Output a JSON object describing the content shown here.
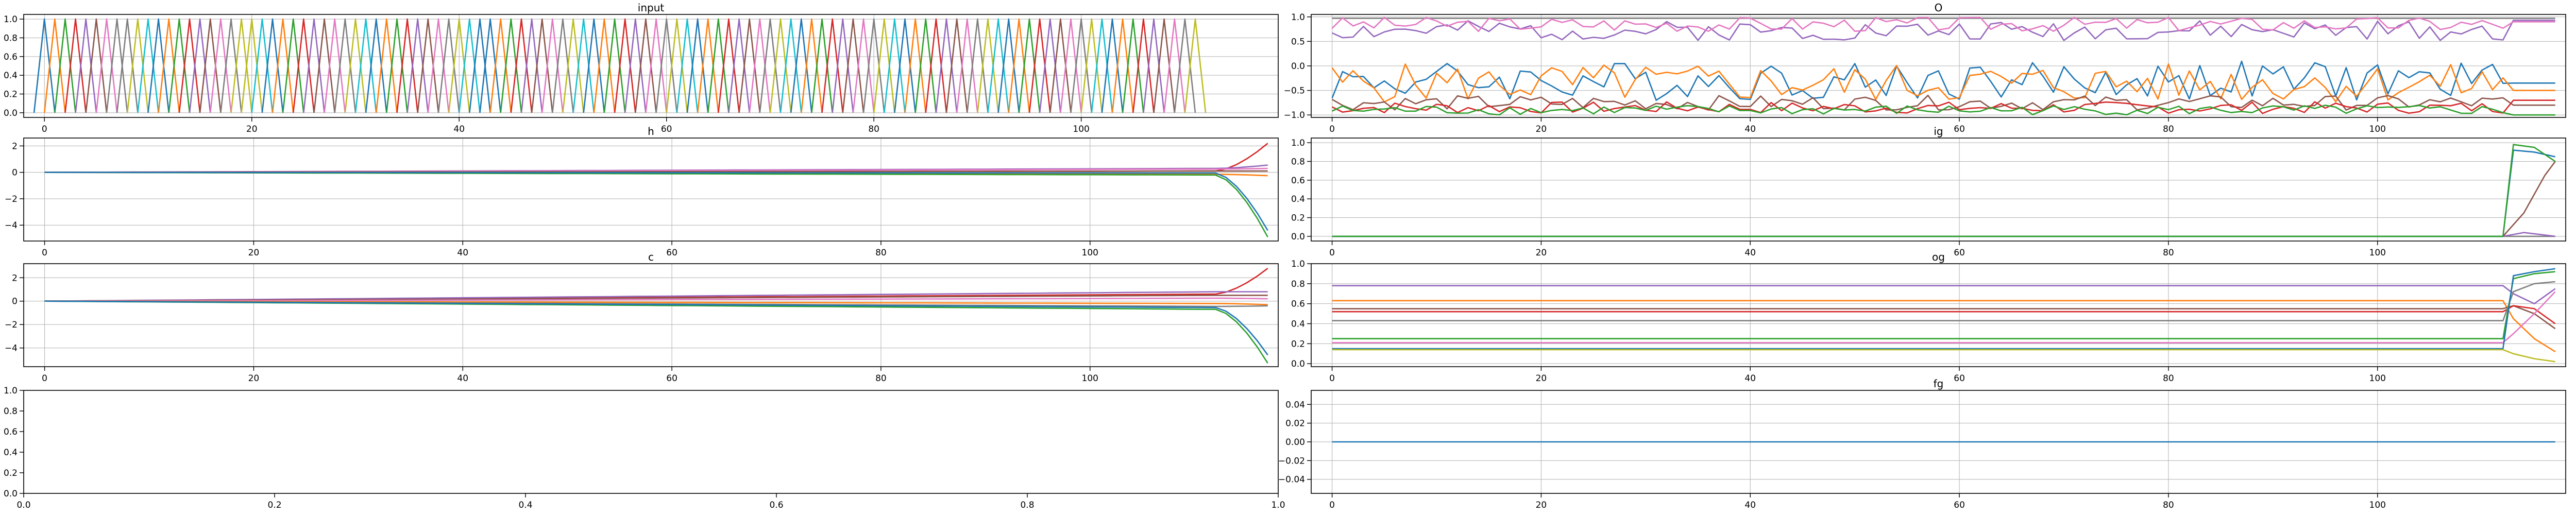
{
  "figure": {
    "background": "#ffffff"
  },
  "chart_data": [
    {
      "type": "line",
      "title": "input",
      "xlim": [
        -2,
        119
      ],
      "ylim": [
        -0.05,
        1.05
      ],
      "xticks": [
        0,
        20,
        40,
        60,
        80,
        100
      ],
      "yticks": [
        0.0,
        0.2,
        0.4,
        0.6,
        0.8,
        1.0
      ],
      "ytick_labels": [
        "0.0",
        "0.2",
        "0.4",
        "0.6",
        "0.8",
        "1.0"
      ],
      "grid": true,
      "n_steps": 112,
      "pattern": "one_hot_triangles",
      "one_hot_sequence": [
        0,
        1,
        2,
        3,
        4,
        5,
        6,
        7,
        7,
        8,
        9,
        0,
        1,
        2,
        3,
        4,
        5,
        6,
        7,
        8,
        8,
        9,
        0,
        1,
        2,
        3,
        4,
        5,
        6,
        7,
        8,
        9,
        0,
        1,
        2,
        3,
        4,
        5,
        6,
        7,
        8,
        9,
        0,
        0,
        1,
        2,
        3,
        4,
        5,
        6,
        7,
        8,
        9,
        0,
        1,
        2,
        3,
        4,
        5,
        6,
        7,
        8,
        9,
        0,
        1,
        2,
        3,
        4,
        5,
        6,
        7,
        8,
        9,
        0,
        1,
        2,
        3,
        4,
        5,
        6,
        7,
        8,
        9,
        0,
        1,
        2,
        3,
        4,
        5,
        6,
        7,
        8,
        9,
        0,
        1,
        2,
        3,
        4,
        5,
        6,
        7,
        8,
        9,
        0,
        1,
        2,
        3,
        4,
        5,
        6,
        7,
        8
      ],
      "series_colors": [
        "#1f77b4",
        "#ff7f0e",
        "#2ca02c",
        "#d62728",
        "#9467bd",
        "#8c564b",
        "#e377c2",
        "#7f7f7f",
        "#bcbd22",
        "#17becf"
      ]
    },
    {
      "type": "line",
      "title": "O",
      "xlim": [
        -2,
        118
      ],
      "ylim": [
        -1.05,
        1.05
      ],
      "xticks": [
        0,
        20,
        40,
        60,
        80,
        100
      ],
      "yticks": [
        -1.0,
        -0.5,
        0.0,
        0.5,
        1.0
      ],
      "ytick_labels": [
        "−1.0",
        "−0.5",
        "0.0",
        "0.5",
        "1.0"
      ],
      "grid": true,
      "n_steps": 112,
      "transition_at": 112,
      "series": [
        {
          "color": "#7f7f7f",
          "base": 0.97,
          "amp": 0.0,
          "end": 0.97,
          "seed": 11
        },
        {
          "color": "#9467bd",
          "base": 0.72,
          "amp": 0.2,
          "end": 0.93,
          "seed": 2
        },
        {
          "color": "#e377c2",
          "base": 0.85,
          "amp": 0.15,
          "end": 0.9,
          "seed": 3
        },
        {
          "color": "#1f77b4",
          "base": -0.3,
          "amp": 0.4,
          "end": -0.35,
          "seed": 4
        },
        {
          "color": "#ff7f0e",
          "base": -0.35,
          "amp": 0.4,
          "end": -0.5,
          "seed": 5
        },
        {
          "color": "#8c564b",
          "base": -0.75,
          "amp": 0.15,
          "end": -0.8,
          "seed": 6
        },
        {
          "color": "#d62728",
          "base": -0.85,
          "amp": 0.12,
          "end": -0.7,
          "seed": 7
        },
        {
          "color": "#2ca02c",
          "base": -0.9,
          "amp": 0.1,
          "end": -1.0,
          "seed": 8
        }
      ]
    },
    {
      "type": "line",
      "title": "h",
      "xlim": [
        -2,
        118
      ],
      "ylim": [
        -5.2,
        2.6
      ],
      "xticks": [
        0,
        20,
        40,
        60,
        80,
        100
      ],
      "yticks": [
        -4,
        -2,
        0,
        2
      ],
      "ytick_labels": [
        "−4",
        "−2",
        "0",
        "2"
      ],
      "grid": true,
      "n_steps": 112,
      "transition_at": 112,
      "series": [
        {
          "color": "#d62728",
          "drift": 0.1,
          "end": 2.2
        },
        {
          "color": "#9467bd",
          "drift": 0.3,
          "end": 0.55
        },
        {
          "color": "#e377c2",
          "drift": 0.25,
          "end": 0.3
        },
        {
          "color": "#8c564b",
          "drift": 0.1,
          "end": 0.1
        },
        {
          "color": "#ff7f0e",
          "drift": -0.15,
          "end": -0.25
        },
        {
          "color": "#2ca02c",
          "drift": -0.2,
          "end": -4.9
        },
        {
          "color": "#1f77b4",
          "drift": -0.05,
          "end": -4.4
        }
      ]
    },
    {
      "type": "line",
      "title": "ig",
      "xlim": [
        -2,
        118
      ],
      "ylim": [
        -0.05,
        1.05
      ],
      "xticks": [
        0,
        20,
        40,
        60,
        80,
        100
      ],
      "yticks": [
        0.0,
        0.2,
        0.4,
        0.6,
        0.8,
        1.0
      ],
      "ytick_labels": [
        "0.0",
        "0.2",
        "0.4",
        "0.6",
        "0.8",
        "1.0"
      ],
      "grid": true,
      "n_steps": 112,
      "transition_at": 112,
      "series": [
        {
          "color": "#7f7f7f",
          "points": [
            [
              0,
              0
            ],
            [
              112,
              0
            ],
            [
              117,
              0
            ]
          ]
        },
        {
          "color": "#9467bd",
          "points": [
            [
              0,
              0
            ],
            [
              112,
              0
            ],
            [
              114,
              0.04
            ],
            [
              117,
              0
            ]
          ]
        },
        {
          "color": "#8c564b",
          "points": [
            [
              0,
              0
            ],
            [
              112,
              0
            ],
            [
              114,
              0.25
            ],
            [
              116,
              0.65
            ],
            [
              117,
              0.8
            ]
          ]
        },
        {
          "color": "#1f77b4",
          "points": [
            [
              0,
              0
            ],
            [
              112,
              0
            ],
            [
              113,
              0.92
            ],
            [
              115,
              0.9
            ],
            [
              117,
              0.85
            ]
          ]
        },
        {
          "color": "#2ca02c",
          "points": [
            [
              0,
              0
            ],
            [
              112,
              0
            ],
            [
              113,
              0.98
            ],
            [
              115,
              0.95
            ],
            [
              117,
              0.8
            ]
          ]
        }
      ]
    },
    {
      "type": "line",
      "title": "c",
      "xlim": [
        -2,
        118
      ],
      "ylim": [
        -5.6,
        3.2
      ],
      "xticks": [
        0,
        20,
        40,
        60,
        80,
        100
      ],
      "yticks": [
        -4,
        -2,
        0,
        2
      ],
      "ytick_labels": [
        "−4",
        "−2",
        "0",
        "2"
      ],
      "grid": true,
      "n_steps": 112,
      "transition_at": 112,
      "series": [
        {
          "color": "#d62728",
          "drift": 0.6,
          "end": 2.8
        },
        {
          "color": "#9467bd",
          "drift": 0.8,
          "end": 0.8
        },
        {
          "color": "#8c564b",
          "drift": 0.5,
          "end": 0.5
        },
        {
          "color": "#e377c2",
          "drift": 0.25,
          "end": 0.2
        },
        {
          "color": "#ff7f0e",
          "drift": -0.2,
          "end": -0.3
        },
        {
          "color": "#7f7f7f",
          "drift": -0.45,
          "end": -0.4
        },
        {
          "color": "#2ca02c",
          "drift": -0.7,
          "end": -5.3
        },
        {
          "color": "#1f77b4",
          "drift": -0.55,
          "end": -4.6
        }
      ]
    },
    {
      "type": "line",
      "title": "og",
      "xlim": [
        -2,
        118
      ],
      "ylim": [
        -0.03,
        1.0
      ],
      "xticks": [
        0,
        20,
        40,
        60,
        80,
        100
      ],
      "yticks": [
        0.0,
        0.2,
        0.4,
        0.6,
        0.8,
        1.0
      ],
      "ytick_labels": [
        "0.0",
        "0.2",
        "0.4",
        "0.6",
        "0.8",
        "1.0"
      ],
      "grid": true,
      "n_steps": 112,
      "transition_at": 112,
      "series": [
        {
          "color": "#9467bd",
          "points": [
            [
              0,
              0.78
            ],
            [
              112,
              0.78
            ],
            [
              113,
              0.7
            ],
            [
              115,
              0.6
            ],
            [
              117,
              0.75
            ]
          ]
        },
        {
          "color": "#ff7f0e",
          "points": [
            [
              0,
              0.63
            ],
            [
              112,
              0.63
            ],
            [
              113,
              0.45
            ],
            [
              115,
              0.25
            ],
            [
              117,
              0.12
            ]
          ]
        },
        {
          "color": "#8c564b",
          "points": [
            [
              0,
              0.55
            ],
            [
              112,
              0.55
            ],
            [
              113,
              0.58
            ],
            [
              115,
              0.5
            ],
            [
              117,
              0.35
            ]
          ]
        },
        {
          "color": "#d62728",
          "points": [
            [
              0,
              0.52
            ],
            [
              112,
              0.52
            ],
            [
              113,
              0.58
            ],
            [
              115,
              0.55
            ],
            [
              117,
              0.4
            ]
          ]
        },
        {
          "color": "#7f7f7f",
          "points": [
            [
              0,
              0.43
            ],
            [
              112,
              0.43
            ],
            [
              113,
              0.72
            ],
            [
              115,
              0.8
            ],
            [
              117,
              0.82
            ]
          ]
        },
        {
          "color": "#2ca02c",
          "points": [
            [
              0,
              0.25
            ],
            [
              112,
              0.25
            ],
            [
              113,
              0.85
            ],
            [
              115,
              0.9
            ],
            [
              117,
              0.92
            ]
          ]
        },
        {
          "color": "#e377c2",
          "points": [
            [
              0,
              0.21
            ],
            [
              112,
              0.21
            ],
            [
              113,
              0.3
            ],
            [
              115,
              0.5
            ],
            [
              117,
              0.72
            ]
          ]
        },
        {
          "color": "#1f77b4",
          "points": [
            [
              0,
              0.15
            ],
            [
              112,
              0.15
            ],
            [
              113,
              0.88
            ],
            [
              115,
              0.92
            ],
            [
              117,
              0.95
            ]
          ]
        },
        {
          "color": "#bcbd22",
          "points": [
            [
              0,
              0.14
            ],
            [
              112,
              0.14
            ],
            [
              113,
              0.1
            ],
            [
              115,
              0.05
            ],
            [
              117,
              0.02
            ]
          ]
        }
      ]
    },
    {
      "type": "line",
      "title": "",
      "xlim": [
        0,
        1
      ],
      "ylim": [
        0,
        1
      ],
      "xticks": [
        0.0,
        0.2,
        0.4,
        0.6,
        0.8,
        1.0
      ],
      "yticks": [
        0.0,
        0.2,
        0.4,
        0.6,
        0.8,
        1.0
      ],
      "xtick_labels": [
        "0.0",
        "0.2",
        "0.4",
        "0.6",
        "0.8",
        "1.0"
      ],
      "ytick_labels": [
        "0.0",
        "0.2",
        "0.4",
        "0.6",
        "0.8",
        "1.0"
      ],
      "grid": false,
      "series": []
    },
    {
      "type": "line",
      "title": "fg",
      "xlim": [
        -2,
        118
      ],
      "ylim": [
        -0.055,
        0.055
      ],
      "xticks": [
        0,
        20,
        40,
        60,
        80,
        100
      ],
      "yticks": [
        -0.04,
        -0.02,
        0.0,
        0.02,
        0.04
      ],
      "ytick_labels": [
        "−0.04",
        "−0.02",
        "0.00",
        "0.02",
        "0.04"
      ],
      "grid": true,
      "n_steps": 117,
      "series": [
        {
          "color": "#1f77b4",
          "points": [
            [
              0,
              0
            ],
            [
              117,
              0
            ]
          ]
        }
      ]
    }
  ]
}
